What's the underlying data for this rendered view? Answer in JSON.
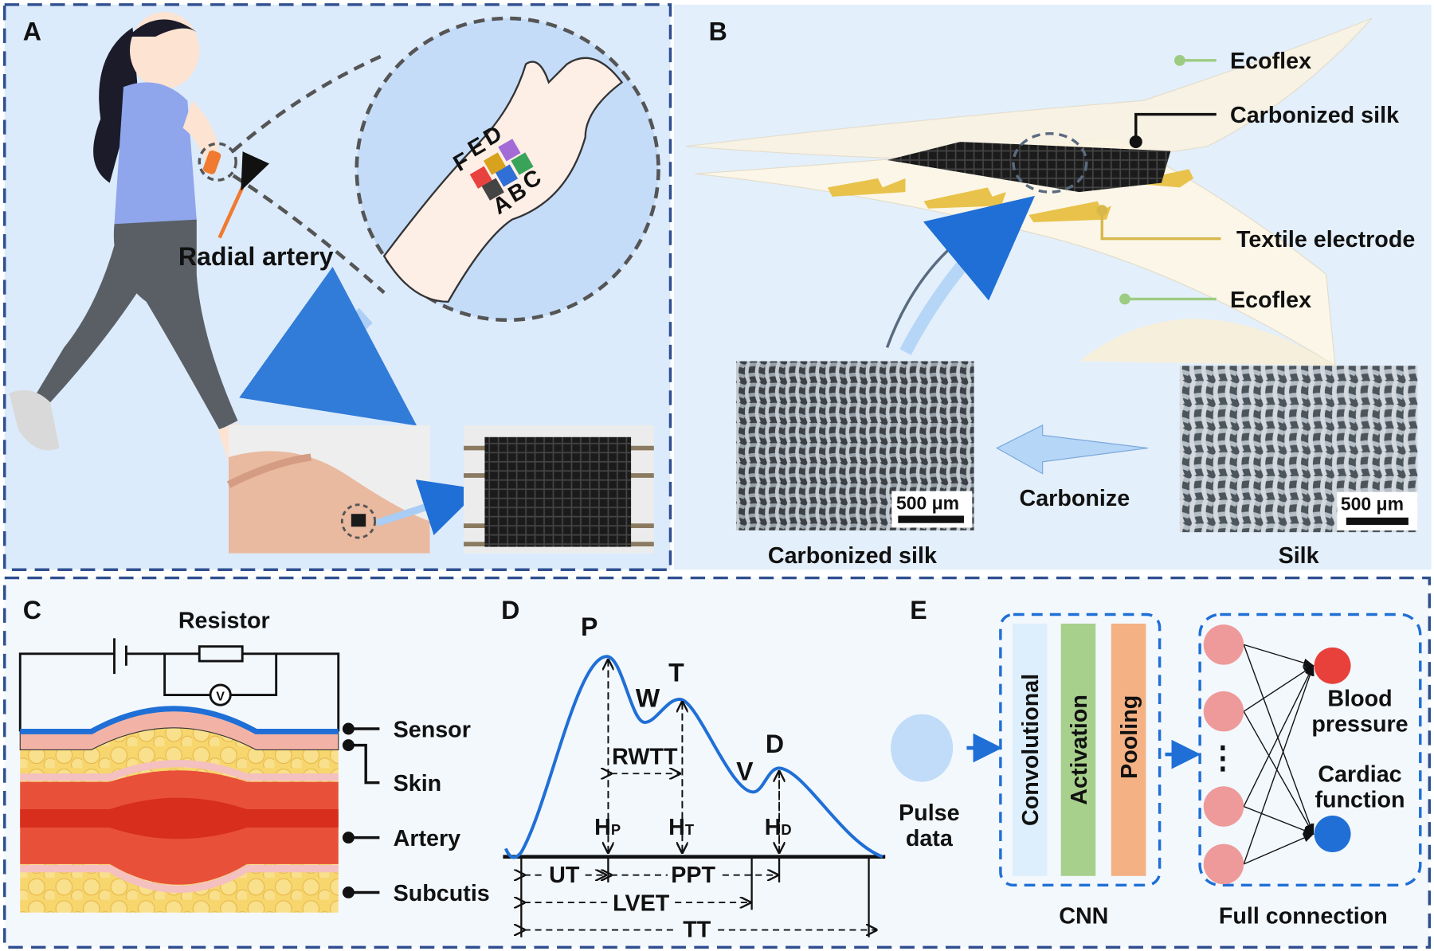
{
  "panels": {
    "A": {
      "letter": "A",
      "radial_artery": "Radial artery",
      "sensor_positions": [
        "A",
        "B",
        "C",
        "D",
        "E",
        "F"
      ],
      "square_colors": [
        "#e8423f",
        "#444444",
        "#2f6fd6",
        "#d8a21c",
        "#a36bd6",
        "#3aa35a"
      ]
    },
    "B": {
      "letter": "B",
      "ecoflex_top": "Ecoflex",
      "carbonized_silk_layer": "Carbonized silk",
      "textile_electrode": "Textile electrode",
      "ecoflex_bottom": "Ecoflex",
      "carbonize": "Carbonize",
      "scale_bar_left": "500 μm",
      "scale_bar_right": "500 μm",
      "caption_left": "Carbonized silk",
      "caption_right": "Silk"
    },
    "C": {
      "letter": "C",
      "resistor": "Resistor",
      "voltmeter": "V",
      "sensor": "Sensor",
      "skin": "Skin",
      "artery": "Artery",
      "subcutis": "Subcutis"
    },
    "D": {
      "letter": "D",
      "points": {
        "P": "P",
        "W": "W",
        "T": "T",
        "V": "V",
        "D": "D"
      },
      "rwtt": "RWTT",
      "hp": "H",
      "hp_sub": "P",
      "ht": "H",
      "ht_sub": "T",
      "hd": "H",
      "hd_sub": "D",
      "ut": "UT",
      "ppt": "PPT",
      "lvet": "LVET",
      "tt": "TT"
    },
    "E": {
      "letter": "E",
      "pulse_line1": "Pulse",
      "pulse_line2": "data",
      "layers": [
        "Convolutional",
        "Activation",
        "Pooling"
      ],
      "cnn": "CNN",
      "full_connection": "Full connection",
      "ellipsis": "⋮",
      "output1_line1": "Blood",
      "output1_line2": "pressure",
      "output2_line1": "Cardiac",
      "output2_line2": "function"
    }
  },
  "colors": {
    "border": "#2f4f8f",
    "curve": "#1f6fd6",
    "accent_blue": "#1f6fd6",
    "conv": "#ddeefc",
    "activation": "#a8d08d",
    "pooling": "#f4b183",
    "input_node": "#ee9a9a",
    "output_bp": "#e8403a",
    "output_cf": "#1f6fd6"
  }
}
